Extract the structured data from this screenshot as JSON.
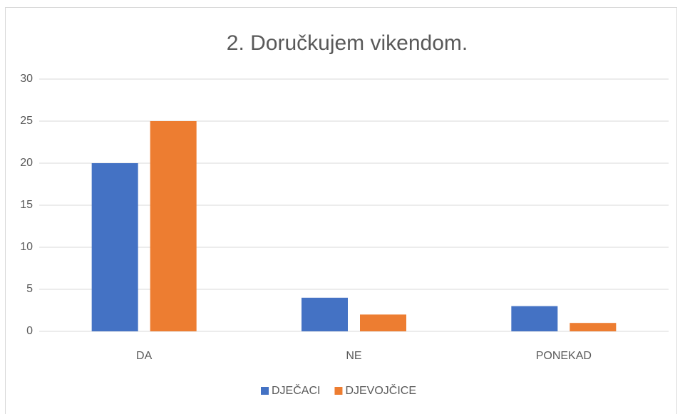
{
  "chart_data": {
    "type": "bar",
    "title": "2. Doručkujem vikendom.",
    "categories": [
      "DA",
      "NE",
      "PONEKAD"
    ],
    "series": [
      {
        "name": "DJEČACI",
        "color": "#4472c4",
        "values": [
          20,
          4,
          3
        ]
      },
      {
        "name": "DJEVOJČICE",
        "color": "#ed7d31",
        "values": [
          25,
          2,
          1
        ]
      }
    ],
    "ylim": [
      0,
      30
    ],
    "yticks": [
      0,
      5,
      10,
      15,
      20,
      25,
      30
    ],
    "grid": true,
    "legend": "bottom"
  }
}
